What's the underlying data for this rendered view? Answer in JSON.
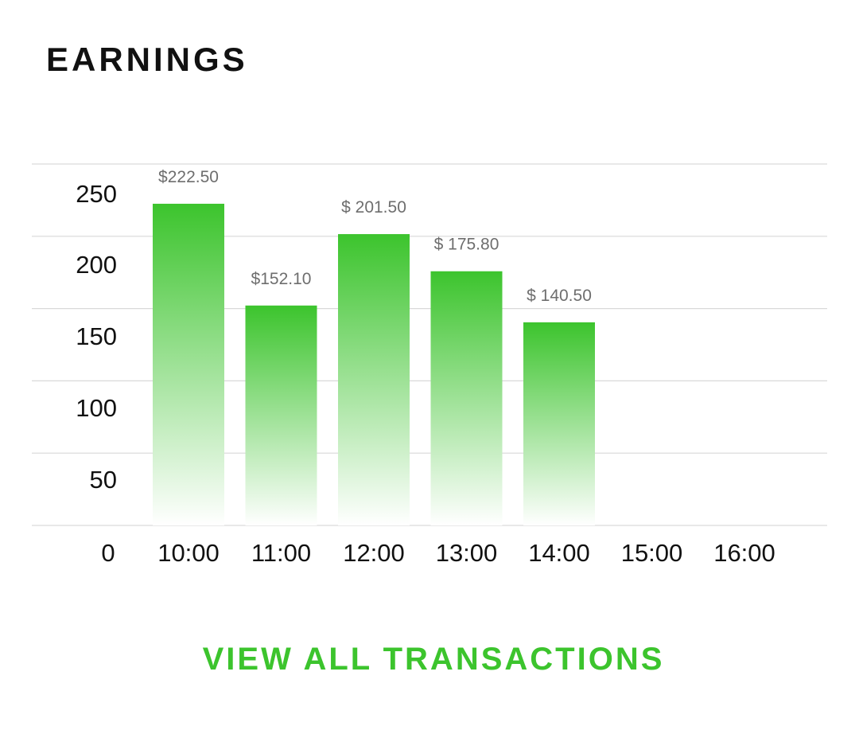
{
  "header": {
    "title": "EARNINGS"
  },
  "chart_data": {
    "type": "bar",
    "categories": [
      "10:00",
      "11:00",
      "12:00",
      "13:00",
      "14:00",
      "15:00",
      "16:00"
    ],
    "values": [
      222.5,
      152.1,
      201.5,
      175.8,
      140.5,
      null,
      null
    ],
    "value_labels": [
      "$222.50",
      "$152.10",
      "$ 201.50",
      "$ 175.80",
      "$ 140.50",
      "",
      ""
    ],
    "y_ticks": [
      "0",
      "50",
      "100",
      "150",
      "200",
      "250"
    ],
    "ylim": [
      0,
      250
    ],
    "grid": true,
    "bar_color": "#3cc42d",
    "bar_fade_color": "#ffffff",
    "grid_color": "#d9d9d9",
    "value_label_color": "#6e6e6e"
  },
  "footer": {
    "cta_label": "VIEW ALL TRANSACTIONS",
    "cta_color": "#3cc42d"
  }
}
